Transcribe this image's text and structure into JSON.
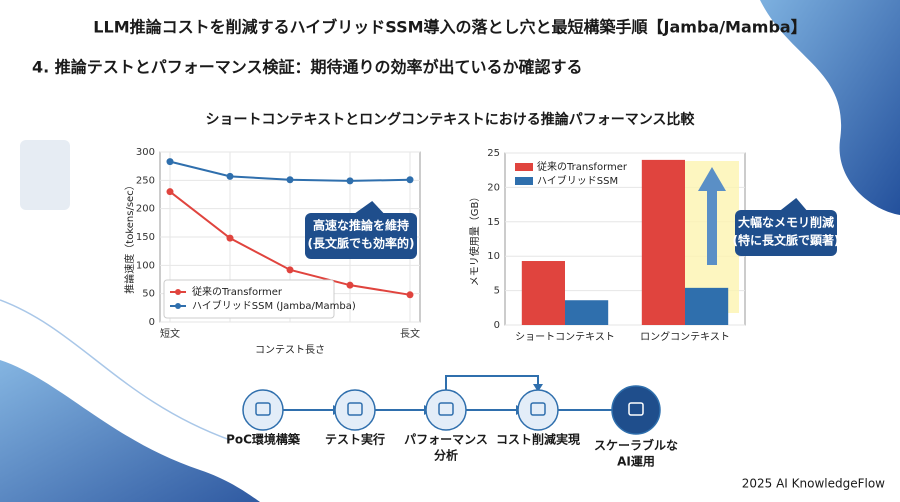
{
  "header": {
    "title": "LLM推論コストを削減するハイブリッドSSM導入の落とし穴と最短構築手順【Jamba/Mamba】",
    "subtitle": "4. 推論テストとパフォーマンス検証：期待通りの効率が出ているか確認する"
  },
  "comparison_title": "ショートコンテキストとロングコンテキストにおける推論パフォーマンス比較",
  "chart_data": [
    {
      "type": "line",
      "categories": [
        "短文",
        null,
        null,
        null,
        "長文"
      ],
      "x_label": "コンテスト長さ",
      "y_label": "推論速度（tokens/sec）",
      "ylim": [
        0,
        300
      ],
      "yticks": [
        0,
        50,
        100,
        150,
        200,
        250,
        300
      ],
      "grid": true,
      "legend": "lower left",
      "series": [
        {
          "name": "従来のTransformer",
          "color": "#e0443e",
          "values": [
            230,
            148,
            92,
            65,
            48
          ]
        },
        {
          "name": "ハイブリッドSSM (Jamba/Mamba)",
          "color": "#2f6fad",
          "values": [
            283,
            257,
            251,
            249,
            251
          ]
        }
      ],
      "annotation": [
        "高速な推論を維持",
        "(長文脈でも効率的)"
      ]
    },
    {
      "type": "bar",
      "categories": [
        "ショートコンテキスト",
        "ロングコンテキスト"
      ],
      "y_label": "メモリ使用量（GB）",
      "ylim": [
        0,
        25
      ],
      "yticks": [
        0,
        5,
        10,
        15,
        20,
        25
      ],
      "grid": true,
      "legend": "upper left",
      "series": [
        {
          "name": "従来のTransformer",
          "color": "#e0443e",
          "values": [
            9.3,
            24
          ]
        },
        {
          "name": "ハイブリッドSSM",
          "color": "#2f6fad",
          "values": [
            3.6,
            5.4
          ]
        }
      ],
      "annotation": [
        "大幅なメモリ削減",
        "(特に長文脈で顕著)"
      ]
    }
  ],
  "flow": {
    "steps": [
      [
        "PoC環境構築"
      ],
      [
        "テスト実行"
      ],
      [
        "パフォーマンス",
        "分析"
      ],
      [
        "コスト削減実現"
      ],
      [
        "スケーラブルな",
        "AI運用"
      ]
    ]
  },
  "footer": "2025 AI KnowledgeFlow"
}
